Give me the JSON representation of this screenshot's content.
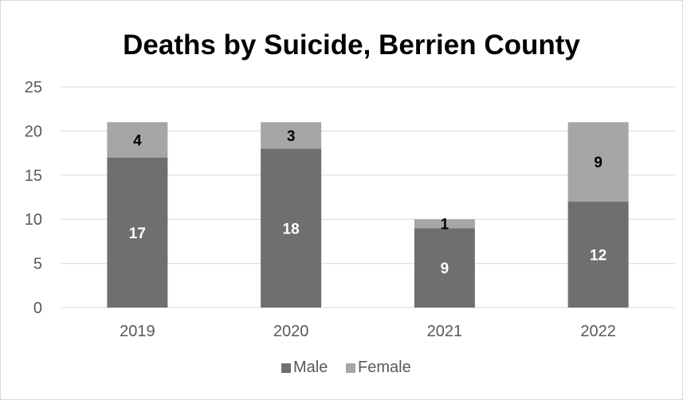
{
  "chart_data": {
    "type": "bar",
    "stacked": true,
    "title": "Deaths by Suicide, Berrien County",
    "xlabel": "",
    "ylabel": "",
    "categories": [
      "2019",
      "2020",
      "2021",
      "2022"
    ],
    "series": [
      {
        "name": "Male",
        "values": [
          17,
          18,
          9,
          12
        ],
        "color": "#6f6f6f",
        "label_color": "#ffffff"
      },
      {
        "name": "Female",
        "values": [
          4,
          3,
          1,
          9
        ],
        "color": "#a6a6a6",
        "label_color": "#000000"
      }
    ],
    "ylim": [
      0,
      25
    ],
    "yticks": [
      0,
      5,
      10,
      15,
      20,
      25
    ],
    "grid": true,
    "legend": "bottom",
    "gridline_color": "#d9d9d9"
  }
}
